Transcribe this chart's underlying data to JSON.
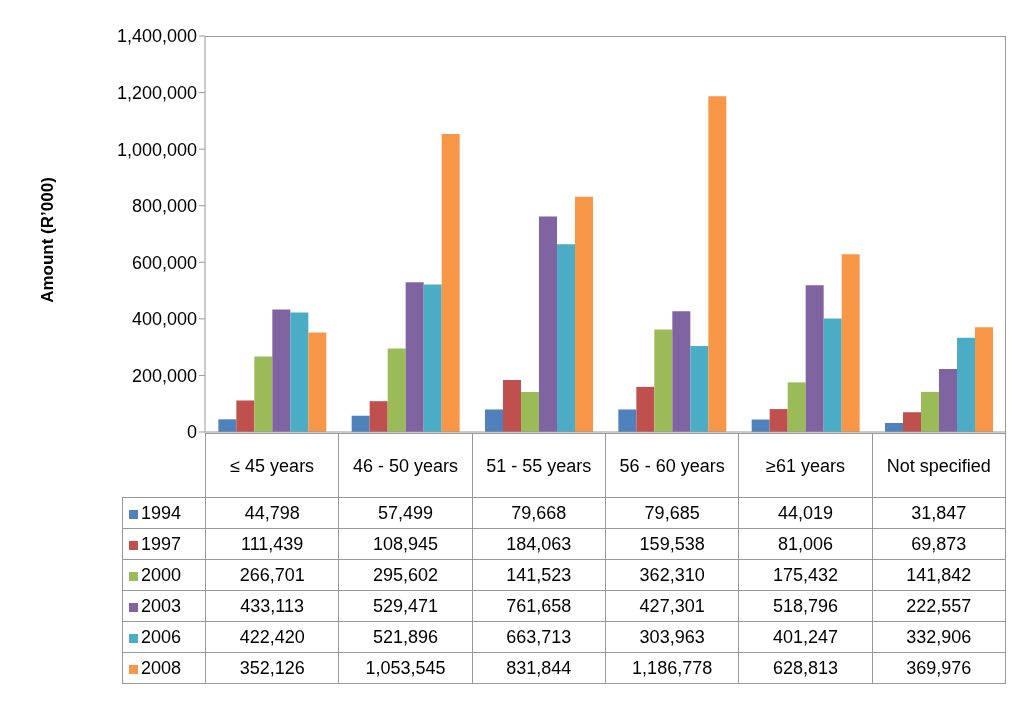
{
  "chart_data": {
    "type": "bar",
    "ylabel": "Amount (R’000)",
    "categories": [
      "≤ 45 years",
      "46 - 50 years",
      "51 - 55 years",
      "56 - 60 years",
      "≥61 years",
      "Not specified"
    ],
    "series": [
      {
        "name": "1994",
        "color": "#4f81bd",
        "values": [
          44798,
          57499,
          79668,
          79685,
          44019,
          31847
        ],
        "value_labels": [
          "44,798",
          "57,499",
          "79,668",
          "79,685",
          "44,019",
          "31,847"
        ]
      },
      {
        "name": "1997",
        "color": "#c0504d",
        "values": [
          111439,
          108945,
          184063,
          159538,
          81006,
          69873
        ],
        "value_labels": [
          "111,439",
          "108,945",
          "184,063",
          "159,538",
          "81,006",
          "69,873"
        ]
      },
      {
        "name": "2000",
        "color": "#9bbb59",
        "values": [
          266701,
          295602,
          141523,
          362310,
          175432,
          141842
        ],
        "value_labels": [
          "266,701",
          "295,602",
          "141,523",
          "362,310",
          "175,432",
          "141,842"
        ]
      },
      {
        "name": "2003",
        "color": "#8064a2",
        "values": [
          433113,
          529471,
          761658,
          427301,
          518796,
          222557
        ],
        "value_labels": [
          "433,113",
          "529,471",
          "761,658",
          "427,301",
          "518,796",
          "222,557"
        ]
      },
      {
        "name": "2006",
        "color": "#4bacc6",
        "values": [
          422420,
          521896,
          663713,
          303963,
          401247,
          332906
        ],
        "value_labels": [
          "422,420",
          "521,896",
          "663,713",
          "303,963",
          "401,247",
          "332,906"
        ]
      },
      {
        "name": "2008",
        "color": "#f79646",
        "values": [
          352126,
          1053545,
          831844,
          1186778,
          628813,
          369976
        ],
        "value_labels": [
          "352,126",
          "1,053,545",
          "831,844",
          "1,186,778",
          "628,813",
          "369,976"
        ]
      }
    ],
    "ylim": [
      0,
      1400000
    ],
    "yticks": [
      0,
      {
        "value": 200000,
        "label": "200,000"
      },
      {
        "value": 400000,
        "label": "400,000"
      },
      {
        "value": 600000,
        "label": "600,000"
      },
      {
        "value": 800000,
        "label": "800,000"
      },
      {
        "value": 1000000,
        "label": "1,000,000"
      },
      {
        "value": 1200000,
        "label": "1,200,000"
      },
      {
        "value": 1400000,
        "label": "1,400,000"
      }
    ],
    "legend": "bottom",
    "grid": false
  }
}
